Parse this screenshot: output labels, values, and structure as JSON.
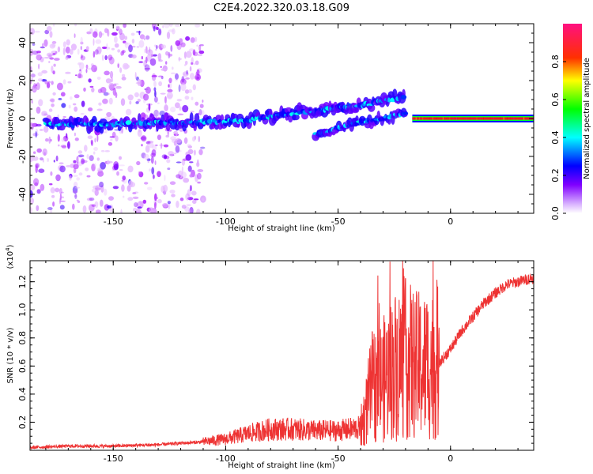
{
  "figure": {
    "title": "C2E4.2022.320.03.18.G09"
  },
  "chart_data": [
    {
      "type": "heatmap",
      "title": "C2E4.2022.320.03.18.G09",
      "xlabel": "Height of straight line (km)",
      "ylabel": "Frequency (Hz)",
      "xlim": [
        -187,
        37
      ],
      "ylim": [
        -50,
        50
      ],
      "x_ticks": [
        -150,
        -100,
        -50,
        0
      ],
      "y_ticks": [
        -40,
        -20,
        0,
        20,
        40
      ],
      "colorbar": {
        "label": "Normalized spectral amplitude",
        "range": [
          0,
          1
        ],
        "ticks": [
          0.0,
          0.2,
          0.4,
          0.6,
          0.8
        ],
        "colormap": [
          "#ffffff",
          "#a000ff",
          "#0000ff",
          "#00ffff",
          "#00ff00",
          "#ffff00",
          "#ff0000",
          "#ff1493"
        ]
      },
      "features": [
        {
          "name": "noise region",
          "x_range": [
            -187,
            -110
          ],
          "y_range": [
            -50,
            50
          ],
          "amplitude": 0.1
        },
        {
          "name": "main ridge",
          "points": [
            [
              -180,
              -3
            ],
            [
              -150,
              -3
            ],
            [
              -130,
              -2
            ],
            [
              -110,
              -2
            ],
            [
              -90,
              -1
            ],
            [
              -80,
              1
            ],
            [
              -70,
              3
            ],
            [
              -60,
              4
            ],
            [
              -50,
              6
            ],
            [
              -40,
              7
            ],
            [
              -30,
              9
            ],
            [
              -20,
              12
            ]
          ],
          "amplitude": 0.35
        },
        {
          "name": "lower branch",
          "points": [
            [
              -60,
              -8
            ],
            [
              -50,
              -5
            ],
            [
              -40,
              -2
            ],
            [
              -30,
              0
            ],
            [
              -20,
              3
            ]
          ],
          "amplitude": 0.35
        },
        {
          "name": "steady tone",
          "points": [
            [
              -17,
              0
            ],
            [
              37,
              0
            ]
          ],
          "amplitude": 0.9
        }
      ]
    },
    {
      "type": "line",
      "xlabel": "Height of straight line (km)",
      "ylabel": "SNR (10 * v/v)",
      "y_multiplier": "(x10",
      "y_multiplier_exp": "4",
      "y_multiplier_close": ")",
      "xlim": [
        -187,
        37
      ],
      "ylim": [
        0,
        1.35
      ],
      "x_ticks": [
        -150,
        -100,
        -50,
        0
      ],
      "y_ticks": [
        0.2,
        0.4,
        0.6,
        0.8,
        1.0,
        1.2
      ],
      "color": "#ee3333",
      "series": [
        {
          "x": [
            -187,
            -170,
            -150,
            -130,
            -120,
            -110,
            -100,
            -90,
            -80,
            -70,
            -60,
            -50,
            -40,
            -38,
            -35,
            -30,
            -25,
            -20,
            -15,
            -10,
            -5,
            0,
            5,
            10,
            15,
            20,
            25,
            30,
            37
          ],
          "values": [
            0.02,
            0.03,
            0.03,
            0.04,
            0.05,
            0.06,
            0.08,
            0.12,
            0.15,
            0.15,
            0.14,
            0.14,
            0.16,
            0.25,
            0.45,
            0.5,
            0.6,
            0.65,
            0.6,
            0.6,
            0.62,
            0.72,
            0.85,
            0.95,
            1.05,
            1.12,
            1.18,
            1.2,
            1.23
          ]
        }
      ]
    }
  ]
}
